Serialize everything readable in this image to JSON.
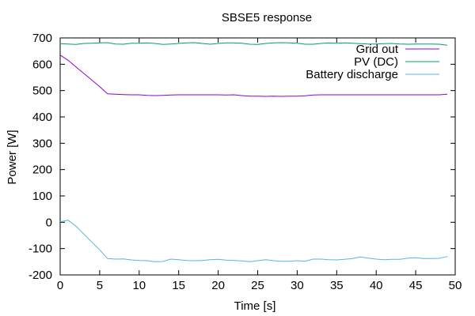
{
  "chart_data": {
    "type": "line",
    "title": "SBSE5 response",
    "xlabel": "Time [s]",
    "ylabel": "Power [W]",
    "xlim": [
      0,
      50
    ],
    "ylim": [
      -200,
      700
    ],
    "x_ticks": [
      0,
      5,
      10,
      15,
      20,
      25,
      30,
      35,
      40,
      45,
      50
    ],
    "y_ticks": [
      -200,
      -100,
      0,
      100,
      200,
      300,
      400,
      500,
      600,
      700
    ],
    "grid": false,
    "legend_position": "top-right",
    "series": [
      {
        "name": "Grid out",
        "color": "#9400d3",
        "points": [
          [
            0,
            635
          ],
          [
            1,
            615
          ],
          [
            2,
            590
          ],
          [
            3,
            565
          ],
          [
            4,
            540
          ],
          [
            5,
            515
          ],
          [
            6,
            488
          ],
          [
            7,
            486
          ],
          [
            8,
            485
          ],
          [
            9,
            484
          ],
          [
            10,
            484
          ],
          [
            11,
            482
          ],
          [
            12,
            481
          ],
          [
            13,
            482
          ],
          [
            14,
            483
          ],
          [
            15,
            484
          ],
          [
            16,
            484
          ],
          [
            17,
            484
          ],
          [
            18,
            484
          ],
          [
            19,
            484
          ],
          [
            20,
            484
          ],
          [
            21,
            483
          ],
          [
            22,
            484
          ],
          [
            23,
            481
          ],
          [
            24,
            479
          ],
          [
            25,
            479
          ],
          [
            26,
            478
          ],
          [
            27,
            479
          ],
          [
            28,
            478
          ],
          [
            29,
            479
          ],
          [
            30,
            479
          ],
          [
            31,
            480
          ],
          [
            32,
            483
          ],
          [
            33,
            484
          ],
          [
            34,
            484
          ],
          [
            35,
            484
          ],
          [
            36,
            484
          ],
          [
            37,
            484
          ],
          [
            38,
            484
          ],
          [
            39,
            484
          ],
          [
            40,
            484
          ],
          [
            41,
            484
          ],
          [
            42,
            484
          ],
          [
            43,
            484
          ],
          [
            44,
            484
          ],
          [
            45,
            484
          ],
          [
            46,
            484
          ],
          [
            47,
            484
          ],
          [
            48,
            484
          ],
          [
            49,
            486
          ]
        ]
      },
      {
        "name": "PV (DC)",
        "color": "#009e73",
        "points": [
          [
            0,
            678
          ],
          [
            1,
            677
          ],
          [
            2,
            675
          ],
          [
            3,
            679
          ],
          [
            4,
            680
          ],
          [
            5,
            681
          ],
          [
            6,
            682
          ],
          [
            7,
            677
          ],
          [
            8,
            676
          ],
          [
            9,
            680
          ],
          [
            10,
            680
          ],
          [
            11,
            681
          ],
          [
            12,
            679
          ],
          [
            13,
            675
          ],
          [
            14,
            677
          ],
          [
            15,
            679
          ],
          [
            16,
            681
          ],
          [
            17,
            682
          ],
          [
            18,
            679
          ],
          [
            19,
            676
          ],
          [
            20,
            679
          ],
          [
            21,
            681
          ],
          [
            22,
            681
          ],
          [
            23,
            680
          ],
          [
            24,
            676
          ],
          [
            25,
            675
          ],
          [
            26,
            679
          ],
          [
            27,
            681
          ],
          [
            28,
            682
          ],
          [
            29,
            681
          ],
          [
            30,
            680
          ],
          [
            31,
            676
          ],
          [
            32,
            676
          ],
          [
            33,
            679
          ],
          [
            34,
            681
          ],
          [
            35,
            680
          ],
          [
            36,
            681
          ],
          [
            37,
            680
          ],
          [
            38,
            678
          ],
          [
            39,
            677
          ],
          [
            40,
            677
          ],
          [
            41,
            678
          ],
          [
            42,
            679
          ],
          [
            43,
            677
          ],
          [
            44,
            676
          ],
          [
            45,
            677
          ],
          [
            46,
            677
          ],
          [
            47,
            677
          ],
          [
            48,
            676
          ],
          [
            49,
            672
          ]
        ]
      },
      {
        "name": "Battery discharge",
        "color": "#56b4e9",
        "points": [
          [
            0,
            2
          ],
          [
            1,
            8
          ],
          [
            2,
            -15
          ],
          [
            3,
            -45
          ],
          [
            4,
            -75
          ],
          [
            5,
            -105
          ],
          [
            6,
            -138
          ],
          [
            7,
            -140
          ],
          [
            8,
            -139
          ],
          [
            9,
            -143
          ],
          [
            10,
            -145
          ],
          [
            11,
            -146
          ],
          [
            12,
            -150
          ],
          [
            13,
            -149
          ],
          [
            14,
            -140
          ],
          [
            15,
            -142
          ],
          [
            16,
            -145
          ],
          [
            17,
            -146
          ],
          [
            18,
            -145
          ],
          [
            19,
            -142
          ],
          [
            20,
            -141
          ],
          [
            21,
            -144
          ],
          [
            22,
            -145
          ],
          [
            23,
            -147
          ],
          [
            24,
            -150
          ],
          [
            25,
            -146
          ],
          [
            26,
            -142
          ],
          [
            27,
            -146
          ],
          [
            28,
            -148
          ],
          [
            29,
            -148
          ],
          [
            30,
            -146
          ],
          [
            31,
            -148
          ],
          [
            32,
            -140
          ],
          [
            33,
            -140
          ],
          [
            34,
            -142
          ],
          [
            35,
            -143
          ],
          [
            36,
            -141
          ],
          [
            37,
            -138
          ],
          [
            38,
            -132
          ],
          [
            39,
            -136
          ],
          [
            40,
            -140
          ],
          [
            41,
            -142
          ],
          [
            42,
            -141
          ],
          [
            43,
            -141
          ],
          [
            44,
            -136
          ],
          [
            45,
            -135
          ],
          [
            46,
            -138
          ],
          [
            47,
            -138
          ],
          [
            48,
            -137
          ],
          [
            49,
            -130
          ]
        ]
      }
    ]
  }
}
